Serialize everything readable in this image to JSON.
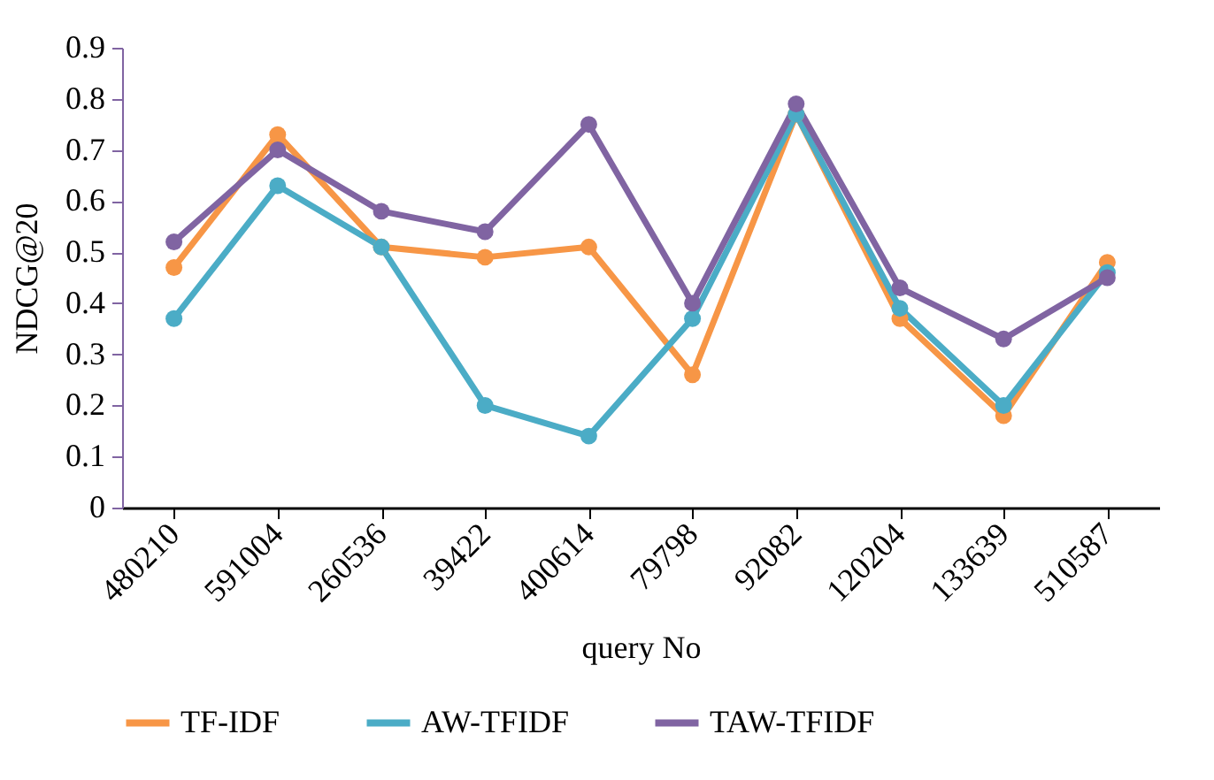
{
  "chart_data": {
    "type": "line",
    "xlabel": "query No",
    "ylabel": "NDCG@20",
    "categories": [
      "480210",
      "591004",
      "260536",
      "39422",
      "400614",
      "79798",
      "92082",
      "120204",
      "133639",
      "510587"
    ],
    "series": [
      {
        "name": "TF-IDF",
        "color": "#f79646",
        "values": [
          0.47,
          0.73,
          0.51,
          0.49,
          0.51,
          0.26,
          0.77,
          0.37,
          0.18,
          0.48
        ]
      },
      {
        "name": "AW-TFIDF",
        "color": "#4bacc6",
        "values": [
          0.37,
          0.63,
          0.51,
          0.2,
          0.14,
          0.37,
          0.77,
          0.39,
          0.2,
          0.46
        ]
      },
      {
        "name": "TAW-TFIDF",
        "color": "#8064a2",
        "values": [
          0.52,
          0.7,
          0.58,
          0.54,
          0.75,
          0.4,
          0.79,
          0.43,
          0.33,
          0.45
        ]
      }
    ],
    "ylim": [
      0,
      0.9
    ],
    "yticks": [
      0,
      0.1,
      0.2,
      0.3,
      0.4,
      0.5,
      0.6,
      0.7,
      0.8,
      0.9
    ],
    "grid": false,
    "legend": "bottom",
    "marker": "circle",
    "line_style": "solid"
  }
}
